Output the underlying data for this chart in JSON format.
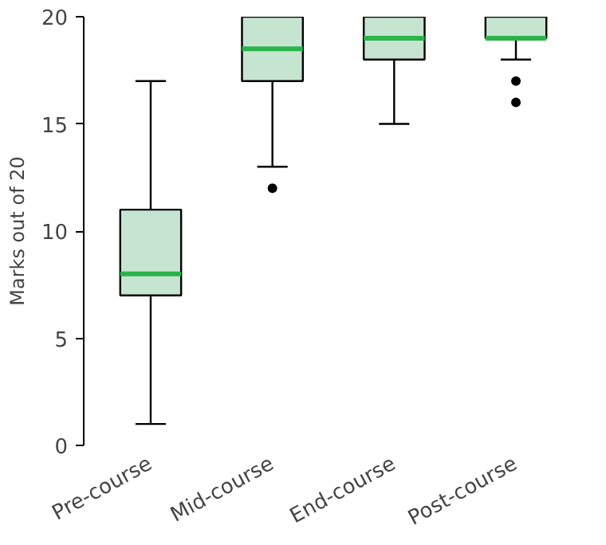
{
  "chart_data": {
    "type": "box",
    "ylabel": "Marks out of 20",
    "categories": [
      "Pre-course",
      "Mid-course",
      "End-course",
      "Post-course"
    ],
    "boxes": [
      {
        "low": 1,
        "q1": 7,
        "median": 8,
        "q3": 11,
        "high": 17
      },
      {
        "low": 13,
        "q1": 17,
        "median": 18.5,
        "q3": 20,
        "high": 20,
        "outliers": [
          12
        ]
      },
      {
        "low": 15,
        "q1": 18,
        "median": 19,
        "q3": 20,
        "high": 20
      },
      {
        "low": 18,
        "q1": 19,
        "median": 19,
        "q3": 20,
        "high": 20,
        "outliers": [
          17,
          16
        ]
      }
    ],
    "color": "#c6e5d0",
    "ylim": [
      0,
      20
    ],
    "yticks": [
      0,
      5,
      10,
      15,
      20
    ],
    "grid": false
  }
}
